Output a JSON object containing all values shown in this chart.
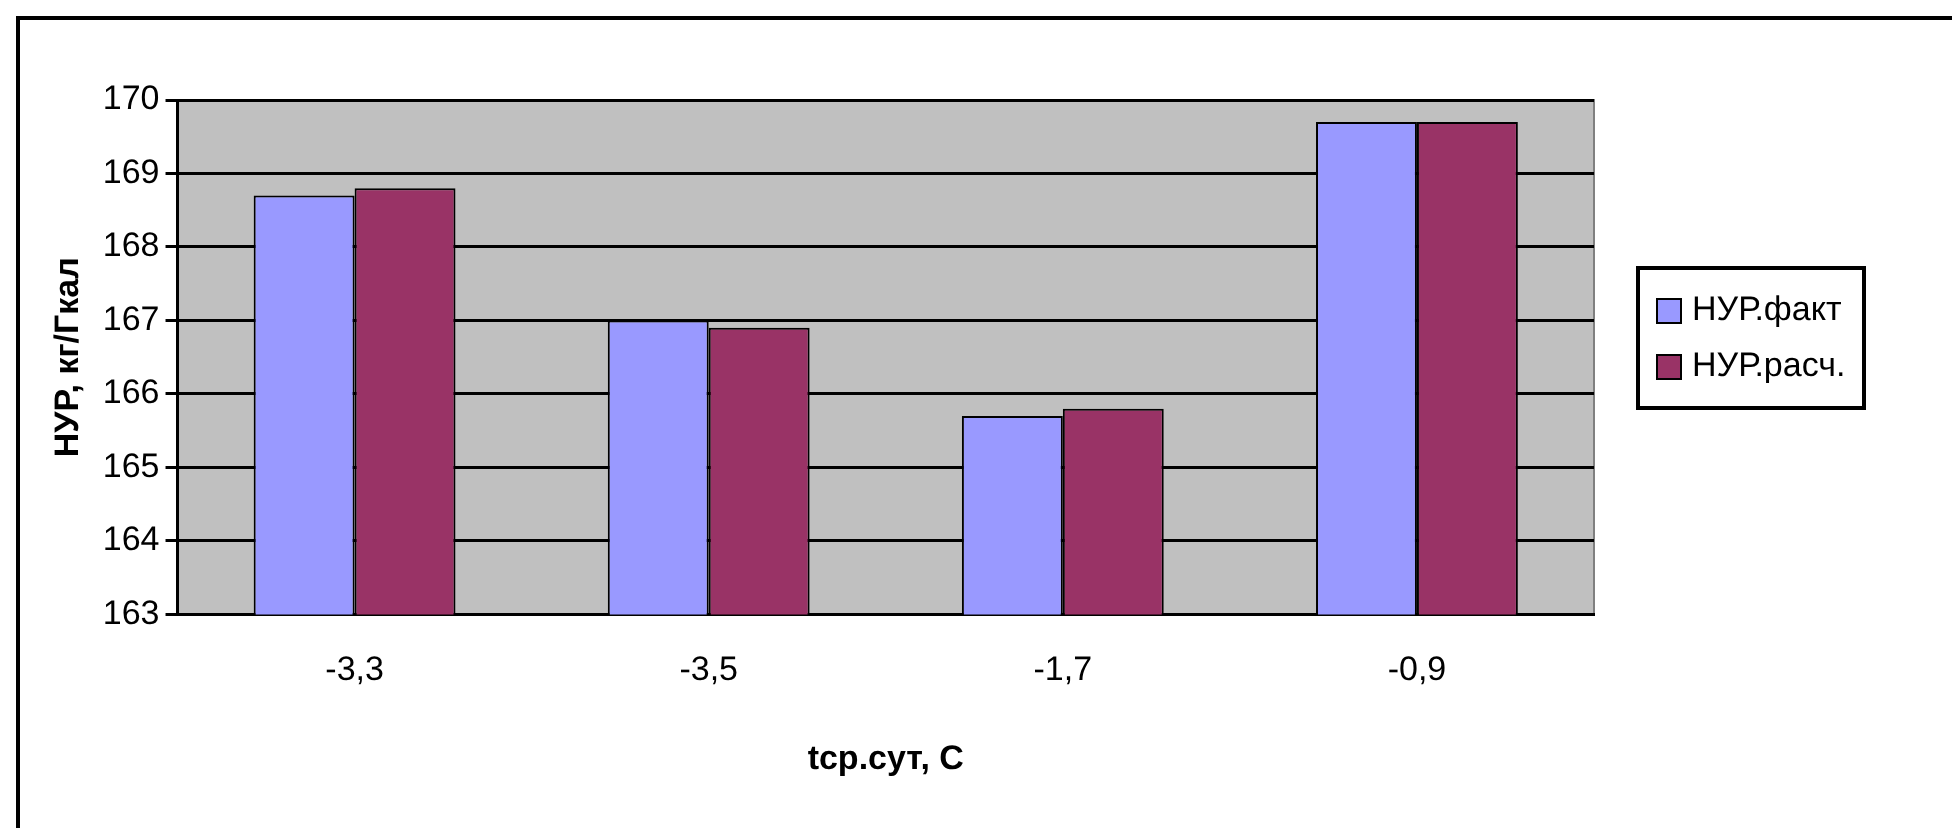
{
  "chart_data": {
    "type": "bar",
    "xlabel": "tср.сут, С",
    "ylabel": "НУР, кг/Гкал",
    "categories": [
      "-3,3",
      "-3,5",
      "-1,7",
      "-0,9"
    ],
    "series": [
      {
        "name": "НУР.факт",
        "color": "#9999ff",
        "values": [
          168.7,
          167.0,
          165.7,
          169.7
        ]
      },
      {
        "name": "НУР.расч.",
        "color": "#993366",
        "values": [
          168.8,
          166.9,
          165.8,
          169.7
        ]
      }
    ],
    "ylim": [
      163,
      170
    ],
    "yticks": [
      163,
      164,
      165,
      166,
      167,
      168,
      169,
      170
    ],
    "grid": "y",
    "legend": "right"
  }
}
